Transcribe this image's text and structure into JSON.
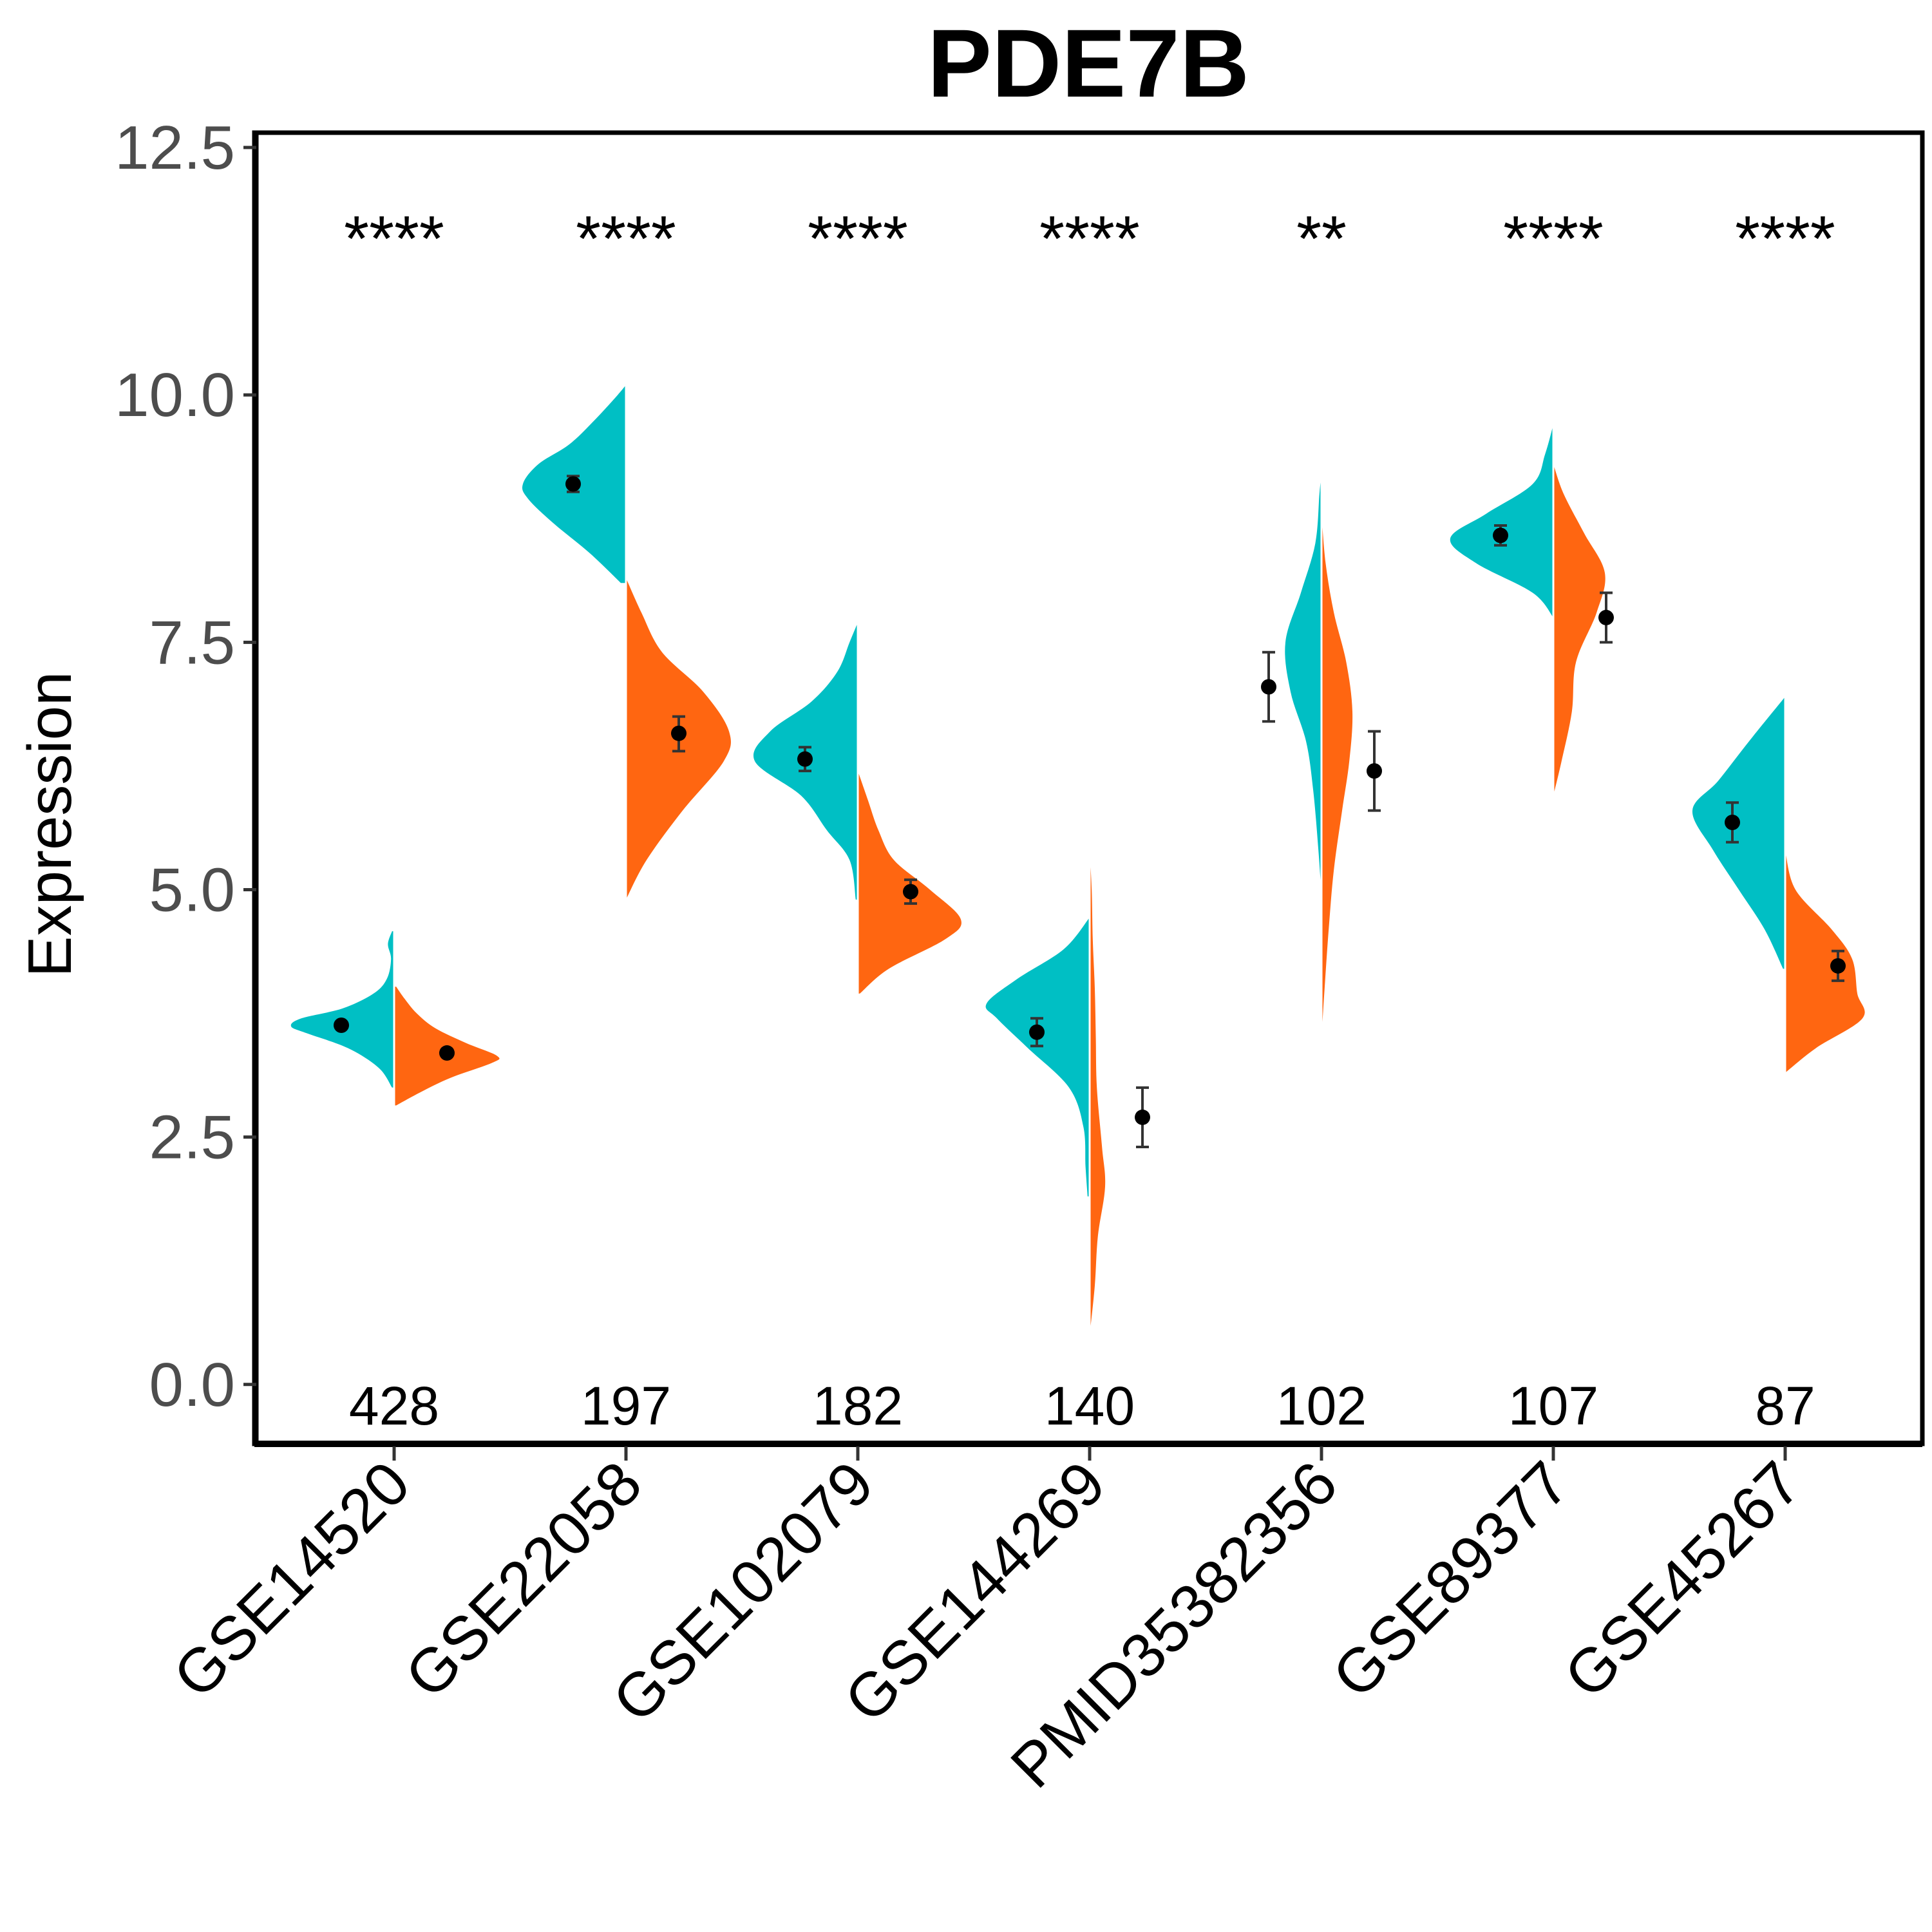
{
  "chart_data": {
    "type": "split-violin",
    "title": "PDE7B",
    "xlabel": "",
    "ylabel": "Expression",
    "ylim": [
      -0.6,
      12.65
    ],
    "yticks": [
      "0.0",
      "2.5",
      "5.0",
      "7.5",
      "10.0",
      "12.5"
    ],
    "grid": false,
    "legend": "none",
    "colors": {
      "left": "#00BFC4",
      "right": "#FF6611",
      "point": "#000000",
      "errorbar": "#333333"
    },
    "categories": [
      "GSE14520",
      "GSE22058",
      "GSE102079",
      "GSE144269",
      "PMID35382356",
      "GSE89377",
      "GSE45267"
    ],
    "significance": [
      "****",
      "****",
      "****",
      "****",
      "**",
      "****",
      "****"
    ],
    "sample_counts": [
      "428",
      "197",
      "182",
      "140",
      "102",
      "107",
      "87"
    ],
    "series": [
      {
        "side": "left",
        "color": "#00BFC4",
        "violins": [
          {
            "min": 3.0,
            "max": 4.58,
            "profile": [
              [
                3.0,
                0.02
              ],
              [
                3.2,
                0.15
              ],
              [
                3.4,
                0.45
              ],
              [
                3.55,
                0.85
              ],
              [
                3.62,
                1.0
              ],
              [
                3.7,
                0.9
              ],
              [
                3.8,
                0.5
              ],
              [
                3.95,
                0.2
              ],
              [
                4.1,
                0.07
              ],
              [
                4.3,
                0.03
              ],
              [
                4.45,
                0.06
              ],
              [
                4.58,
                0.02
              ]
            ]
          },
          {
            "min": 8.1,
            "max": 10.1,
            "profile": [
              [
                8.1,
                0.05
              ],
              [
                8.4,
                0.35
              ],
              [
                8.7,
                0.7
              ],
              [
                8.95,
                0.95
              ],
              [
                9.1,
                1.0
              ],
              [
                9.3,
                0.85
              ],
              [
                9.5,
                0.55
              ],
              [
                9.75,
                0.3
              ],
              [
                10.0,
                0.08
              ],
              [
                10.1,
                0.0
              ]
            ]
          },
          {
            "min": 4.9,
            "max": 7.7,
            "profile": [
              [
                4.9,
                0.02
              ],
              [
                5.3,
                0.08
              ],
              [
                5.6,
                0.3
              ],
              [
                5.95,
                0.55
              ],
              [
                6.3,
                1.0
              ],
              [
                6.6,
                0.85
              ],
              [
                6.9,
                0.45
              ],
              [
                7.2,
                0.2
              ],
              [
                7.5,
                0.08
              ],
              [
                7.7,
                0.0
              ]
            ]
          },
          {
            "min": 1.9,
            "max": 4.72,
            "profile": [
              [
                1.9,
                0.02
              ],
              [
                2.2,
                0.04
              ],
              [
                2.6,
                0.06
              ],
              [
                3.0,
                0.2
              ],
              [
                3.4,
                0.6
              ],
              [
                3.7,
                0.9
              ],
              [
                3.85,
                1.0
              ],
              [
                4.1,
                0.7
              ],
              [
                4.4,
                0.25
              ],
              [
                4.72,
                0.0
              ]
            ]
          },
          {
            "min": 4.95,
            "max": 9.2,
            "profile": [
              [
                4.95,
                0.0
              ],
              [
                5.4,
                0.03
              ],
              [
                6.0,
                0.08
              ],
              [
                6.5,
                0.15
              ],
              [
                7.0,
                0.3
              ],
              [
                7.5,
                0.35
              ],
              [
                8.0,
                0.2
              ],
              [
                8.5,
                0.06
              ],
              [
                9.0,
                0.02
              ],
              [
                9.2,
                0.0
              ]
            ]
          },
          {
            "min": 7.75,
            "max": 9.7,
            "profile": [
              [
                7.75,
                0.0
              ],
              [
                8.0,
                0.2
              ],
              [
                8.3,
                0.75
              ],
              [
                8.55,
                1.0
              ],
              [
                8.8,
                0.65
              ],
              [
                9.1,
                0.2
              ],
              [
                9.4,
                0.08
              ],
              [
                9.7,
                0.0
              ]
            ]
          },
          {
            "min": 4.2,
            "max": 6.95,
            "profile": [
              [
                4.2,
                0.02
              ],
              [
                4.6,
                0.2
              ],
              [
                5.0,
                0.45
              ],
              [
                5.4,
                0.7
              ],
              [
                5.8,
                0.9
              ],
              [
                6.1,
                0.65
              ],
              [
                6.5,
                0.35
              ],
              [
                6.95,
                0.0
              ]
            ]
          }
        ]
      },
      {
        "side": "right",
        "color": "#FF6611",
        "violins": [
          {
            "min": 2.82,
            "max": 4.02,
            "profile": [
              [
                2.82,
                0.02
              ],
              [
                2.95,
                0.25
              ],
              [
                3.1,
                0.55
              ],
              [
                3.25,
                0.95
              ],
              [
                3.32,
                1.0
              ],
              [
                3.45,
                0.7
              ],
              [
                3.6,
                0.4
              ],
              [
                3.75,
                0.22
              ],
              [
                3.9,
                0.1
              ],
              [
                4.02,
                0.02
              ]
            ]
          },
          {
            "min": 4.9,
            "max": 8.15,
            "profile": [
              [
                4.9,
                0.0
              ],
              [
                5.3,
                0.2
              ],
              [
                5.8,
                0.55
              ],
              [
                6.3,
                0.95
              ],
              [
                6.6,
                1.0
              ],
              [
                7.0,
                0.75
              ],
              [
                7.4,
                0.35
              ],
              [
                7.8,
                0.15
              ],
              [
                8.15,
                0.0
              ]
            ]
          },
          {
            "min": 3.95,
            "max": 6.2,
            "profile": [
              [
                3.95,
                0.02
              ],
              [
                4.2,
                0.3
              ],
              [
                4.5,
                0.85
              ],
              [
                4.7,
                1.0
              ],
              [
                5.0,
                0.7
              ],
              [
                5.3,
                0.35
              ],
              [
                5.6,
                0.2
              ],
              [
                5.9,
                0.1
              ],
              [
                6.2,
                0.0
              ]
            ]
          },
          {
            "min": 0.5,
            "max": 5.4,
            "profile": [
              [
                0.5,
                0.0
              ],
              [
                1.0,
                0.05
              ],
              [
                1.5,
                0.08
              ],
              [
                2.0,
                0.15
              ],
              [
                2.4,
                0.12
              ],
              [
                3.0,
                0.07
              ],
              [
                3.5,
                0.06
              ],
              [
                4.0,
                0.05
              ],
              [
                4.5,
                0.03
              ],
              [
                5.0,
                0.02
              ],
              [
                5.4,
                0.0
              ]
            ]
          },
          {
            "min": 3.5,
            "max": 8.8,
            "profile": [
              [
                3.5,
                0.0
              ],
              [
                4.0,
                0.03
              ],
              [
                4.6,
                0.07
              ],
              [
                5.2,
                0.12
              ],
              [
                5.8,
                0.2
              ],
              [
                6.3,
                0.27
              ],
              [
                6.8,
                0.3
              ],
              [
                7.3,
                0.24
              ],
              [
                7.8,
                0.12
              ],
              [
                8.3,
                0.04
              ],
              [
                8.8,
                0.0
              ]
            ]
          },
          {
            "min": 5.95,
            "max": 9.3,
            "profile": [
              [
                5.95,
                0.0
              ],
              [
                6.3,
                0.08
              ],
              [
                6.8,
                0.18
              ],
              [
                7.3,
                0.22
              ],
              [
                7.8,
                0.42
              ],
              [
                8.2,
                0.5
              ],
              [
                8.6,
                0.3
              ],
              [
                9.0,
                0.1
              ],
              [
                9.3,
                0.0
              ]
            ]
          },
          {
            "min": 3.15,
            "max": 5.4,
            "profile": [
              [
                3.15,
                0.0
              ],
              [
                3.4,
                0.3
              ],
              [
                3.7,
                0.75
              ],
              [
                3.95,
                0.7
              ],
              [
                4.3,
                0.65
              ],
              [
                4.6,
                0.45
              ],
              [
                5.0,
                0.1
              ],
              [
                5.4,
                0.0
              ]
            ]
          }
        ]
      }
    ],
    "mean_points": [
      {
        "left": {
          "mean": 3.63,
          "lo": 3.6,
          "hi": 3.66
        },
        "right": {
          "mean": 3.35,
          "lo": 3.32,
          "hi": 3.38
        }
      },
      {
        "left": {
          "mean": 9.1,
          "lo": 9.02,
          "hi": 9.18
        },
        "right": {
          "mean": 6.58,
          "lo": 6.4,
          "hi": 6.75
        }
      },
      {
        "left": {
          "mean": 6.32,
          "lo": 6.2,
          "hi": 6.44
        },
        "right": {
          "mean": 4.98,
          "lo": 4.86,
          "hi": 5.1
        }
      },
      {
        "left": {
          "mean": 3.56,
          "lo": 3.42,
          "hi": 3.7
        },
        "right": {
          "mean": 2.7,
          "lo": 2.4,
          "hi": 3.0
        }
      },
      {
        "left": {
          "mean": 7.05,
          "lo": 6.7,
          "hi": 7.4
        },
        "right": {
          "mean": 6.2,
          "lo": 5.8,
          "hi": 6.6
        }
      },
      {
        "left": {
          "mean": 8.58,
          "lo": 8.48,
          "hi": 8.68
        },
        "right": {
          "mean": 7.75,
          "lo": 7.5,
          "hi": 8.0
        }
      },
      {
        "left": {
          "mean": 5.68,
          "lo": 5.48,
          "hi": 5.88
        },
        "right": {
          "mean": 4.23,
          "lo": 4.08,
          "hi": 4.38
        }
      }
    ]
  }
}
